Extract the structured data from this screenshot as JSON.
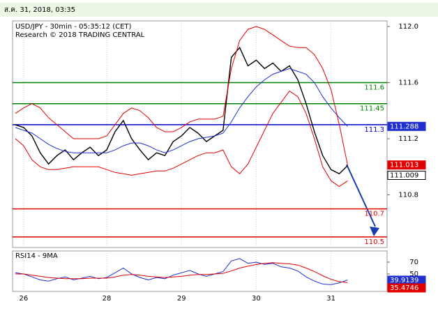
{
  "header": {
    "timestamp": "ส.ค. 31, 2018, 03:35"
  },
  "chart_data": [
    {
      "type": "line",
      "title": "USD/JPY - 30min - 05:35:12 (CET)",
      "subtitle": "Research © 2018 TRADING CENTRAL",
      "xlim": [
        0,
        44.75
      ],
      "xticks": [
        {
          "value": 1,
          "label": "26"
        },
        {
          "value": 11,
          "label": "28"
        },
        {
          "value": 20,
          "label": "29"
        },
        {
          "value": 29,
          "label": "30"
        },
        {
          "value": 38,
          "label": "31"
        }
      ],
      "ylim": [
        110.425,
        112.04
      ],
      "yticks": [
        {
          "value": 112,
          "label": "112.0"
        },
        111.6,
        111.2,
        110.8
      ],
      "grid": true,
      "series": [
        {
          "color": "#000000",
          "values": [
            111.3,
            111.28,
            111.22,
            111.1,
            111.02,
            111.08,
            111.12,
            111.05,
            111.1,
            111.14,
            111.08,
            111.12,
            111.25,
            111.33,
            111.2,
            111.12,
            111.05,
            111.1,
            111.08,
            111.18,
            111.22,
            111.28,
            111.24,
            111.18,
            111.22,
            111.26,
            111.78,
            111.85,
            111.72,
            111.76,
            111.7,
            111.74,
            111.68,
            111.72,
            111.62,
            111.45,
            111.25,
            111.08,
            110.98,
            110.95,
            111.009
          ]
        },
        {
          "color": "#1f2fd0",
          "values": [
            111.28,
            111.26,
            111.24,
            111.2,
            111.16,
            111.13,
            111.11,
            111.1,
            111.1,
            111.1,
            111.1,
            111.1,
            111.12,
            111.15,
            111.17,
            111.17,
            111.15,
            111.12,
            111.1,
            111.12,
            111.15,
            111.18,
            111.2,
            111.21,
            111.22,
            111.24,
            111.32,
            111.42,
            111.5,
            111.57,
            111.62,
            111.66,
            111.68,
            111.7,
            111.68,
            111.66,
            111.6,
            111.5,
            111.42,
            111.35,
            111.288
          ]
        },
        {
          "color": "#e00000",
          "values": [
            111.38,
            111.42,
            111.45,
            111.42,
            111.35,
            111.3,
            111.25,
            111.2,
            111.2,
            111.2,
            111.2,
            111.22,
            111.3,
            111.38,
            111.42,
            111.4,
            111.35,
            111.28,
            111.25,
            111.25,
            111.28,
            111.32,
            111.34,
            111.34,
            111.34,
            111.36,
            111.7,
            111.9,
            111.98,
            112.0,
            111.98,
            111.94,
            111.9,
            111.86,
            111.85,
            111.85,
            111.8,
            111.7,
            111.55,
            111.3,
            111.013
          ]
        },
        {
          "color": "#e00000",
          "values": [
            111.2,
            111.15,
            111.05,
            111.0,
            110.98,
            110.98,
            110.99,
            111.0,
            111.0,
            111.0,
            111.0,
            110.98,
            110.96,
            110.95,
            110.94,
            110.95,
            110.96,
            110.97,
            110.97,
            110.99,
            111.02,
            111.05,
            111.08,
            111.1,
            111.1,
            111.12,
            111.0,
            110.95,
            111.02,
            111.14,
            111.26,
            111.38,
            111.46,
            111.54,
            111.5,
            111.38,
            111.2,
            111.0,
            110.9,
            110.86,
            110.9
          ]
        }
      ],
      "last_value_boxes": [
        1,
        2,
        0
      ],
      "levels": [
        {
          "value": 111.6,
          "color": "#008000"
        },
        {
          "value": 111.45,
          "color": "#008000"
        },
        {
          "value": 111.3,
          "color": "#0000cc"
        },
        {
          "value": 110.7,
          "color": "#e00000"
        },
        {
          "value": 110.5,
          "color": "#e00000"
        }
      ]
    },
    {
      "type": "line",
      "title": "RSI14 - 9MA",
      "xlim": [
        0,
        44.75
      ],
      "ylim": [
        20.6,
        88.8
      ],
      "yticks": [
        70,
        50
      ],
      "series": [
        {
          "color": "#1f2fd0",
          "values": [
            52,
            50,
            45,
            40,
            38,
            42,
            45,
            40,
            43,
            46,
            42,
            44,
            52,
            60,
            50,
            44,
            40,
            44,
            42,
            48,
            52,
            56,
            50,
            46,
            50,
            54,
            72,
            76,
            68,
            70,
            66,
            68,
            62,
            60,
            55,
            45,
            38,
            33,
            32,
            35,
            39.9139
          ]
        },
        {
          "color": "#e00000",
          "values": [
            50,
            50,
            48,
            46,
            44,
            43,
            42,
            42,
            42,
            43,
            43,
            43,
            45,
            48,
            49,
            48,
            46,
            45,
            44,
            45,
            46,
            48,
            49,
            49,
            50,
            51,
            55,
            60,
            63,
            66,
            68,
            69,
            68,
            67,
            65,
            60,
            54,
            47,
            41,
            37,
            35.4746
          ]
        }
      ],
      "last_value_boxes": [
        0,
        1
      ]
    }
  ]
}
